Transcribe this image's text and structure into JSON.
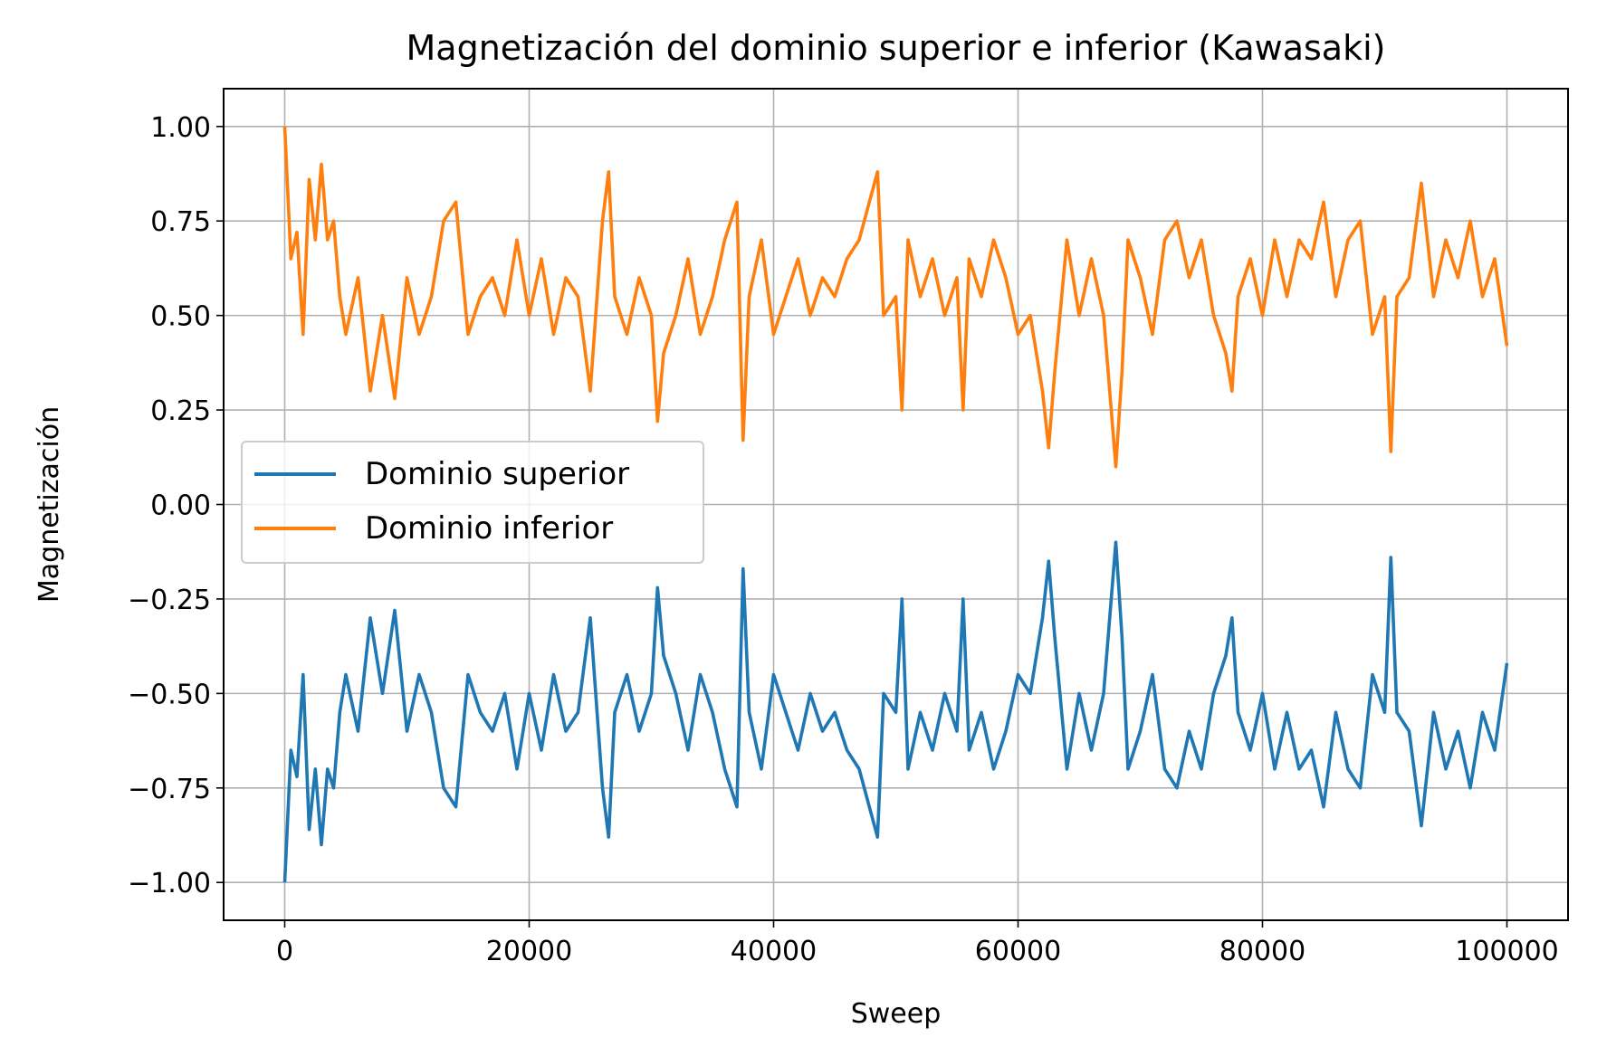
{
  "chart_data": {
    "type": "line",
    "title": "Magnetización del dominio superior e inferior (Kawasaki)",
    "xlabel": "Sweep",
    "ylabel": "Magnetización",
    "xlim": [
      -5000,
      105000
    ],
    "ylim": [
      -1.1,
      1.1
    ],
    "xticks": [
      0,
      20000,
      40000,
      60000,
      80000,
      100000
    ],
    "xtick_labels": [
      "0",
      "20000",
      "40000",
      "60000",
      "80000",
      "100000"
    ],
    "yticks": [
      1.0,
      0.75,
      0.5,
      0.25,
      0.0,
      -0.25,
      -0.5,
      -0.75,
      -1.0
    ],
    "ytick_labels": [
      "1.00",
      "0.75",
      "0.50",
      "0.25",
      "0.00",
      "−0.25",
      "−0.50",
      "−0.75",
      "−1.00"
    ],
    "grid": true,
    "legend_position": "center-left",
    "series": [
      {
        "name": "Dominio superior",
        "color": "#1f77b4",
        "x": [
          0,
          500,
          1000,
          1500,
          2000,
          2500,
          3000,
          3500,
          4000,
          4500,
          5000,
          6000,
          7000,
          8000,
          9000,
          10000,
          11000,
          12000,
          13000,
          14000,
          15000,
          16000,
          17000,
          18000,
          19000,
          20000,
          21000,
          22000,
          23000,
          24000,
          25000,
          26000,
          26500,
          27000,
          28000,
          29000,
          30000,
          30500,
          31000,
          32000,
          33000,
          34000,
          35000,
          36000,
          37000,
          37500,
          38000,
          39000,
          40000,
          41000,
          42000,
          43000,
          44000,
          45000,
          46000,
          47000,
          48000,
          48500,
          49000,
          50000,
          50500,
          51000,
          52000,
          53000,
          54000,
          55000,
          55500,
          56000,
          57000,
          58000,
          59000,
          60000,
          61000,
          62000,
          62500,
          63000,
          64000,
          65000,
          66000,
          67000,
          68000,
          68500,
          69000,
          70000,
          71000,
          72000,
          73000,
          74000,
          75000,
          76000,
          77000,
          77500,
          78000,
          79000,
          80000,
          81000,
          82000,
          83000,
          84000,
          85000,
          86000,
          87000,
          88000,
          89000,
          90000,
          90500,
          91000,
          92000,
          93000,
          94000,
          95000,
          96000,
          97000,
          98000,
          99000,
          100000
        ],
        "y": [
          -1.0,
          -0.65,
          -0.72,
          -0.45,
          -0.86,
          -0.7,
          -0.9,
          -0.7,
          -0.75,
          -0.55,
          -0.45,
          -0.6,
          -0.3,
          -0.5,
          -0.28,
          -0.6,
          -0.45,
          -0.55,
          -0.75,
          -0.8,
          -0.45,
          -0.55,
          -0.6,
          -0.5,
          -0.7,
          -0.5,
          -0.65,
          -0.45,
          -0.6,
          -0.55,
          -0.3,
          -0.75,
          -0.88,
          -0.55,
          -0.45,
          -0.6,
          -0.5,
          -0.22,
          -0.4,
          -0.5,
          -0.65,
          -0.45,
          -0.55,
          -0.7,
          -0.8,
          -0.17,
          -0.55,
          -0.7,
          -0.45,
          -0.55,
          -0.65,
          -0.5,
          -0.6,
          -0.55,
          -0.65,
          -0.7,
          -0.82,
          -0.88,
          -0.5,
          -0.55,
          -0.25,
          -0.7,
          -0.55,
          -0.65,
          -0.5,
          -0.6,
          -0.25,
          -0.65,
          -0.55,
          -0.7,
          -0.6,
          -0.45,
          -0.5,
          -0.3,
          -0.15,
          -0.35,
          -0.7,
          -0.5,
          -0.65,
          -0.5,
          -0.1,
          -0.35,
          -0.7,
          -0.6,
          -0.45,
          -0.7,
          -0.75,
          -0.6,
          -0.7,
          -0.5,
          -0.4,
          -0.3,
          -0.55,
          -0.65,
          -0.5,
          -0.7,
          -0.55,
          -0.7,
          -0.65,
          -0.8,
          -0.55,
          -0.7,
          -0.75,
          -0.45,
          -0.55,
          -0.14,
          -0.55,
          -0.6,
          -0.85,
          -0.55,
          -0.7,
          -0.6,
          -0.75,
          -0.55,
          -0.65,
          -0.42
        ]
      },
      {
        "name": "Dominio inferior",
        "color": "#ff7f0e",
        "x": [
          0,
          500,
          1000,
          1500,
          2000,
          2500,
          3000,
          3500,
          4000,
          4500,
          5000,
          6000,
          7000,
          8000,
          9000,
          10000,
          11000,
          12000,
          13000,
          14000,
          15000,
          16000,
          17000,
          18000,
          19000,
          20000,
          21000,
          22000,
          23000,
          24000,
          25000,
          26000,
          26500,
          27000,
          28000,
          29000,
          30000,
          30500,
          31000,
          32000,
          33000,
          34000,
          35000,
          36000,
          37000,
          37500,
          38000,
          39000,
          40000,
          41000,
          42000,
          43000,
          44000,
          45000,
          46000,
          47000,
          48000,
          48500,
          49000,
          50000,
          50500,
          51000,
          52000,
          53000,
          54000,
          55000,
          55500,
          56000,
          57000,
          58000,
          59000,
          60000,
          61000,
          62000,
          62500,
          63000,
          64000,
          65000,
          66000,
          67000,
          68000,
          68500,
          69000,
          70000,
          71000,
          72000,
          73000,
          74000,
          75000,
          76000,
          77000,
          77500,
          78000,
          79000,
          80000,
          81000,
          82000,
          83000,
          84000,
          85000,
          86000,
          87000,
          88000,
          89000,
          90000,
          90500,
          91000,
          92000,
          93000,
          94000,
          95000,
          96000,
          97000,
          98000,
          99000,
          100000
        ],
        "y": [
          1.0,
          0.65,
          0.72,
          0.45,
          0.86,
          0.7,
          0.9,
          0.7,
          0.75,
          0.55,
          0.45,
          0.6,
          0.3,
          0.5,
          0.28,
          0.6,
          0.45,
          0.55,
          0.75,
          0.8,
          0.45,
          0.55,
          0.6,
          0.5,
          0.7,
          0.5,
          0.65,
          0.45,
          0.6,
          0.55,
          0.3,
          0.75,
          0.88,
          0.55,
          0.45,
          0.6,
          0.5,
          0.22,
          0.4,
          0.5,
          0.65,
          0.45,
          0.55,
          0.7,
          0.8,
          0.17,
          0.55,
          0.7,
          0.45,
          0.55,
          0.65,
          0.5,
          0.6,
          0.55,
          0.65,
          0.7,
          0.82,
          0.88,
          0.5,
          0.55,
          0.25,
          0.7,
          0.55,
          0.65,
          0.5,
          0.6,
          0.25,
          0.65,
          0.55,
          0.7,
          0.6,
          0.45,
          0.5,
          0.3,
          0.15,
          0.35,
          0.7,
          0.5,
          0.65,
          0.5,
          0.1,
          0.35,
          0.7,
          0.6,
          0.45,
          0.7,
          0.75,
          0.6,
          0.7,
          0.5,
          0.4,
          0.3,
          0.55,
          0.65,
          0.5,
          0.7,
          0.55,
          0.7,
          0.65,
          0.8,
          0.55,
          0.7,
          0.75,
          0.45,
          0.55,
          0.14,
          0.55,
          0.6,
          0.85,
          0.55,
          0.7,
          0.6,
          0.75,
          0.55,
          0.65,
          0.42
        ]
      }
    ]
  }
}
